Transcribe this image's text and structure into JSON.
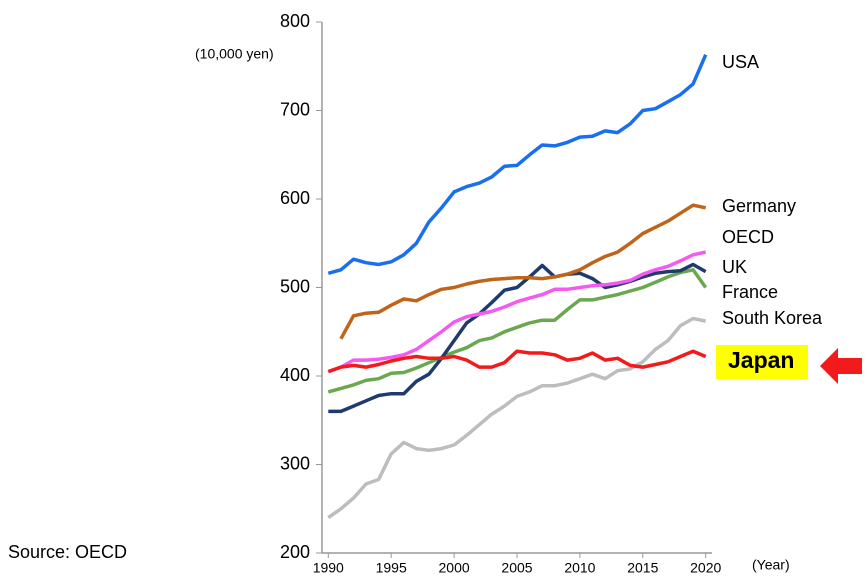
{
  "chart_data": {
    "type": "line",
    "y_label": "(10,000 yen)",
    "x_label": "(Year)",
    "source": "Source: OECD",
    "x": [
      1990,
      1991,
      1992,
      1993,
      1994,
      1995,
      1996,
      1997,
      1998,
      1999,
      2000,
      2001,
      2002,
      2003,
      2004,
      2005,
      2006,
      2007,
      2008,
      2009,
      2010,
      2011,
      2012,
      2013,
      2014,
      2015,
      2016,
      2017,
      2018,
      2019,
      2020
    ],
    "xlim": [
      1989.5,
      2020.5
    ],
    "xticks": [
      1990,
      1995,
      2000,
      2005,
      2010,
      2015,
      2020
    ],
    "ylim": [
      200,
      800
    ],
    "yticks": [
      200,
      300,
      400,
      500,
      600,
      700,
      800
    ],
    "series": [
      {
        "name": "USA",
        "color": "#1a6ff0",
        "values": [
          516,
          520,
          532,
          528,
          526,
          529,
          537,
          550,
          574,
          590,
          608,
          614,
          618,
          625,
          637,
          638,
          650,
          661,
          660,
          664,
          670,
          671,
          677,
          675,
          685,
          700,
          702,
          710,
          718,
          730,
          763
        ]
      },
      {
        "name": "Germany",
        "color": "#c0641a",
        "values": [
          null,
          442,
          468,
          471,
          472,
          480,
          487,
          485,
          492,
          498,
          500,
          504,
          507,
          509,
          510,
          511,
          511,
          510,
          512,
          515,
          520,
          528,
          535,
          540,
          550,
          561,
          568,
          575,
          584,
          593,
          590
        ]
      },
      {
        "name": "OECD",
        "color": "#f55af0",
        "values": [
          405,
          410,
          418,
          418,
          419,
          421,
          424,
          430,
          440,
          450,
          461,
          467,
          470,
          473,
          478,
          484,
          488,
          492,
          498,
          498,
          500,
          502,
          503,
          505,
          508,
          515,
          520,
          524,
          530,
          537,
          540
        ]
      },
      {
        "name": "UK",
        "color": "#1f3b6e",
        "values": [
          360,
          360,
          366,
          372,
          378,
          380,
          380,
          394,
          402,
          420,
          440,
          460,
          470,
          483,
          497,
          500,
          512,
          525,
          512,
          515,
          516,
          510,
          500,
          503,
          507,
          512,
          516,
          518,
          519,
          526,
          518
        ]
      },
      {
        "name": "France",
        "color": "#6aa84f",
        "values": [
          382,
          386,
          390,
          395,
          397,
          403,
          404,
          409,
          415,
          421,
          427,
          432,
          440,
          443,
          450,
          455,
          460,
          463,
          463,
          475,
          486,
          486,
          489,
          492,
          496,
          500,
          506,
          512,
          517,
          520,
          500
        ]
      },
      {
        "name": "South Korea",
        "color": "#bdbdbd",
        "values": [
          240,
          250,
          262,
          278,
          283,
          312,
          325,
          318,
          316,
          318,
          322,
          333,
          345,
          357,
          366,
          377,
          382,
          389,
          389,
          392,
          397,
          402,
          397,
          406,
          408,
          416,
          430,
          440,
          457,
          465,
          462
        ]
      },
      {
        "name": "Japan",
        "color": "#f21a1a",
        "values": [
          405,
          410,
          412,
          410,
          413,
          417,
          420,
          422,
          420,
          420,
          422,
          418,
          410,
          410,
          415,
          428,
          426,
          426,
          424,
          418,
          420,
          426,
          418,
          420,
          412,
          410,
          413,
          416,
          422,
          428,
          422
        ]
      }
    ]
  }
}
